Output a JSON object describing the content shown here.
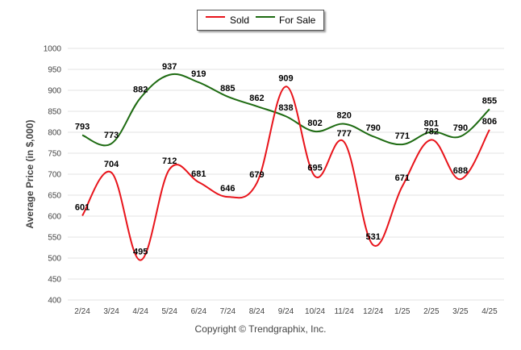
{
  "chart_data": {
    "type": "line",
    "categories": [
      "2/24",
      "3/24",
      "4/24",
      "5/24",
      "6/24",
      "7/24",
      "8/24",
      "9/24",
      "10/24",
      "11/24",
      "12/24",
      "1/25",
      "2/25",
      "3/25",
      "4/25"
    ],
    "series": [
      {
        "name": "Sold",
        "color": "#e8141b",
        "values": [
          601,
          704,
          495,
          712,
          681,
          646,
          679,
          909,
          695,
          777,
          531,
          671,
          782,
          688,
          806
        ]
      },
      {
        "name": "For Sale",
        "color": "#1e6b12",
        "values": [
          793,
          773,
          882,
          937,
          919,
          885,
          862,
          838,
          802,
          820,
          790,
          771,
          801,
          790,
          855
        ]
      }
    ],
    "ylabel": "Average Price (in $,000)",
    "ylim": [
      400,
      1000
    ],
    "yticks": [
      400,
      450,
      500,
      550,
      600,
      650,
      700,
      750,
      800,
      850,
      900,
      950,
      1000
    ],
    "grid": true,
    "legend": "top-center"
  },
  "credit": "Copyright © Trendgraphix, Inc."
}
